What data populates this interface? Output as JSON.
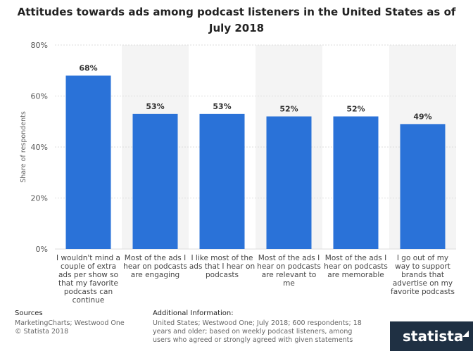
{
  "chart_data": {
    "type": "bar",
    "title": "Attitudes towards ads among podcast listeners in the United States as of July 2018",
    "ylabel": "Share of respondents",
    "xlabel": "",
    "ylim": [
      0,
      80
    ],
    "yticks": [
      "0%",
      "20%",
      "40%",
      "60%",
      "80%"
    ],
    "grid": true,
    "bar_color": "#2a72d8",
    "categories": [
      [
        "I wouldn't mind a",
        "couple of extra",
        "ads per show so",
        "that my favorite",
        "podcasts can",
        "continue"
      ],
      [
        "Most of the ads I",
        "hear on podcasts",
        "are engaging"
      ],
      [
        "I like most of the",
        "ads that I hear on",
        "podcasts"
      ],
      [
        "Most of the ads I",
        "hear on podcasts",
        "are relevant to",
        "me"
      ],
      [
        "Most of the ads I",
        "hear on podcasts",
        "are memorable"
      ],
      [
        "I go out of my",
        "way to support",
        "brands that",
        "advertise on my",
        "favorite podcasts"
      ]
    ],
    "values": [
      68,
      53,
      53,
      52,
      52,
      49
    ],
    "value_labels": [
      "68%",
      "53%",
      "53%",
      "52%",
      "52%",
      "49%"
    ]
  },
  "footer": {
    "sources_heading": "Sources",
    "sources_line1": "MarketingCharts; Westwood One",
    "sources_line2": "© Statista 2018",
    "info_heading": "Additional Information:",
    "info_text": "United States; Westwood One; July 2018; 600 respondents; 18 years and older; based on weekly podcast listeners, among users who agreed or strongly agreed with given statements"
  },
  "brand": {
    "name": "statista"
  }
}
